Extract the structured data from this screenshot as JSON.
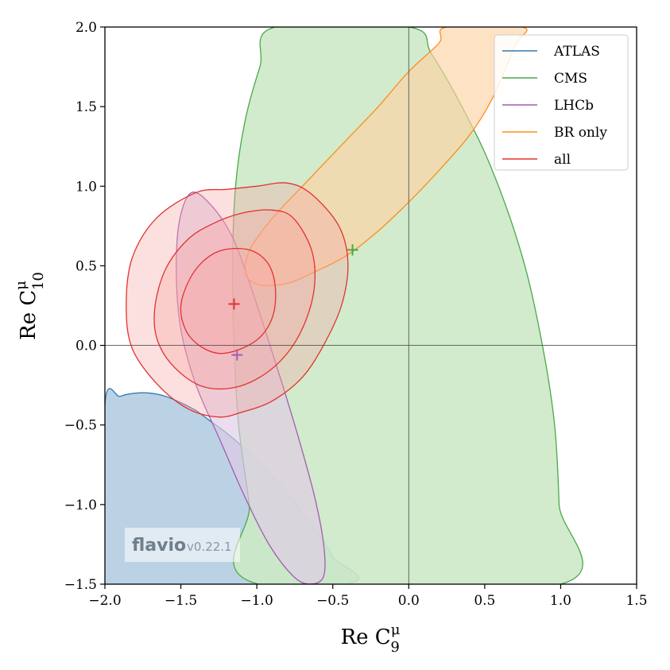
{
  "chart_data": {
    "type": "contour",
    "xlabel_text": "Re C",
    "xlabel_sub": "9",
    "xlabel_sup": "μ",
    "ylabel_text": "Re C",
    "ylabel_sub": "10",
    "ylabel_sup": "μ",
    "xlim": [
      -2.0,
      1.5
    ],
    "ylim": [
      -1.5,
      2.0
    ],
    "xticks": [
      "−2.0",
      "−1.5",
      "−1.0",
      "−0.5",
      "0.0",
      "0.5",
      "1.0",
      "1.5"
    ],
    "xtick_values": [
      -2.0,
      -1.5,
      -1.0,
      -0.5,
      0.0,
      0.5,
      1.0,
      1.5
    ],
    "yticks": [
      "−1.5",
      "−1.0",
      "−0.5",
      "0.0",
      "0.5",
      "1.0",
      "1.5",
      "2.0"
    ],
    "ytick_values": [
      -1.5,
      -1.0,
      -0.5,
      0.0,
      0.5,
      1.0,
      1.5,
      2.0
    ],
    "grid": false,
    "reference_lines": {
      "x": 0.0,
      "y": 0.0
    },
    "legend_position": "top-right",
    "series": [
      {
        "name": "ATLAS",
        "color": "#3778b4",
        "fill": "#b4cde2",
        "contours": [
          [
            [
              -2.0,
              -0.37
            ],
            [
              -1.9,
              -0.32
            ],
            [
              -1.8,
              -0.3
            ],
            [
              -1.7,
              -0.3
            ],
            [
              -1.6,
              -0.32
            ],
            [
              -1.5,
              -0.36
            ],
            [
              -1.4,
              -0.41
            ],
            [
              -1.3,
              -0.48
            ],
            [
              -1.2,
              -0.55
            ],
            [
              -1.1,
              -0.63
            ],
            [
              -1.0,
              -0.72
            ],
            [
              -0.9,
              -0.82
            ],
            [
              -0.8,
              -0.93
            ],
            [
              -0.7,
              -1.05
            ],
            [
              -0.6,
              -1.18
            ],
            [
              -0.5,
              -1.33
            ],
            [
              -0.43,
              -1.5
            ],
            [
              -2.0,
              -1.5
            ]
          ]
        ]
      },
      {
        "name": "CMS",
        "color": "#4aa84a",
        "fill": "#cce9c6",
        "contours": [
          [
            [
              -0.99,
              -1.5
            ],
            [
              -1.05,
              -1.0
            ],
            [
              -1.12,
              -0.5
            ],
            [
              -1.15,
              0.0
            ],
            [
              -1.16,
              0.5
            ],
            [
              -1.14,
              1.0
            ],
            [
              -1.08,
              1.4
            ],
            [
              -0.98,
              1.75
            ],
            [
              -0.88,
              2.0
            ],
            [
              0.0,
              2.0
            ],
            [
              0.15,
              1.83
            ],
            [
              0.35,
              1.5
            ],
            [
              0.55,
              1.1
            ],
            [
              0.75,
              0.55
            ],
            [
              0.88,
              0.0
            ],
            [
              0.96,
              -0.5
            ],
            [
              0.99,
              -1.0
            ],
            [
              1.0,
              -1.5
            ]
          ]
        ],
        "best_fit": [
          -0.37,
          0.6
        ]
      },
      {
        "name": "LHCb",
        "color": "#a55cb0",
        "fill": "#dfcbe5",
        "contours": [
          [
            [
              -1.43,
              0.96
            ],
            [
              -1.3,
              0.88
            ],
            [
              -1.16,
              0.68
            ],
            [
              -1.05,
              0.4
            ],
            [
              -0.94,
              0.08
            ],
            [
              -0.83,
              -0.25
            ],
            [
              -0.72,
              -0.6
            ],
            [
              -0.62,
              -0.95
            ],
            [
              -0.56,
              -1.25
            ],
            [
              -0.56,
              -1.45
            ],
            [
              -0.65,
              -1.5
            ],
            [
              -0.76,
              -1.45
            ],
            [
              -0.92,
              -1.25
            ],
            [
              -1.08,
              -0.95
            ],
            [
              -1.24,
              -0.6
            ],
            [
              -1.4,
              -0.25
            ],
            [
              -1.5,
              0.1
            ],
            [
              -1.53,
              0.45
            ],
            [
              -1.51,
              0.78
            ]
          ]
        ],
        "best_fit": [
          -1.13,
          -0.06
        ]
      },
      {
        "name": "BR only",
        "color": "#ff8c1a",
        "fill": "#fdd2a4",
        "contours": [
          [
            [
              -1.07,
              0.44
            ],
            [
              -1.06,
              0.57
            ],
            [
              -0.98,
              0.7
            ],
            [
              -0.85,
              0.85
            ],
            [
              -0.7,
              1.0
            ],
            [
              -0.55,
              1.15
            ],
            [
              -0.4,
              1.3
            ],
            [
              -0.2,
              1.5
            ],
            [
              0.0,
              1.72
            ],
            [
              0.2,
              1.9
            ],
            [
              0.25,
              2.0
            ],
            [
              0.75,
              2.0
            ],
            [
              0.7,
              1.88
            ],
            [
              0.55,
              1.55
            ],
            [
              0.4,
              1.32
            ],
            [
              0.2,
              1.1
            ],
            [
              0.0,
              0.9
            ],
            [
              -0.2,
              0.72
            ],
            [
              -0.4,
              0.57
            ],
            [
              -0.6,
              0.47
            ],
            [
              -0.8,
              0.39
            ],
            [
              -0.98,
              0.38
            ]
          ]
        ]
      },
      {
        "name": "all",
        "color": "#e23232",
        "fill": "#f6a6a2",
        "contours": [
          [
            [
              -1.4,
              0.96
            ],
            [
              -1.2,
              0.98
            ],
            [
              -1.0,
              1.0
            ],
            [
              -0.8,
              1.02
            ],
            [
              -0.64,
              0.95
            ],
            [
              -0.46,
              0.75
            ],
            [
              -0.4,
              0.52
            ],
            [
              -0.44,
              0.26
            ],
            [
              -0.55,
              0.02
            ],
            [
              -0.7,
              -0.2
            ],
            [
              -0.9,
              -0.35
            ],
            [
              -1.1,
              -0.42
            ],
            [
              -1.25,
              -0.45
            ],
            [
              -1.45,
              -0.4
            ],
            [
              -1.65,
              -0.25
            ],
            [
              -1.82,
              -0.02
            ],
            [
              -1.86,
              0.25
            ],
            [
              -1.82,
              0.55
            ],
            [
              -1.66,
              0.8
            ]
          ],
          [
            [
              -1.3,
              0.76
            ],
            [
              -1.1,
              0.83
            ],
            [
              -0.9,
              0.85
            ],
            [
              -0.76,
              0.8
            ],
            [
              -0.64,
              0.6
            ],
            [
              -0.62,
              0.38
            ],
            [
              -0.68,
              0.15
            ],
            [
              -0.8,
              -0.05
            ],
            [
              -0.98,
              -0.2
            ],
            [
              -1.18,
              -0.27
            ],
            [
              -1.38,
              -0.25
            ],
            [
              -1.56,
              -0.12
            ],
            [
              -1.66,
              0.05
            ],
            [
              -1.67,
              0.25
            ],
            [
              -1.6,
              0.48
            ],
            [
              -1.46,
              0.66
            ]
          ],
          [
            [
              -1.22,
              0.6
            ],
            [
              -1.05,
              0.6
            ],
            [
              -0.93,
              0.52
            ],
            [
              -0.88,
              0.38
            ],
            [
              -0.89,
              0.2
            ],
            [
              -0.97,
              0.06
            ],
            [
              -1.1,
              -0.02
            ],
            [
              -1.25,
              -0.05
            ],
            [
              -1.38,
              0.0
            ],
            [
              -1.47,
              0.1
            ],
            [
              -1.5,
              0.25
            ],
            [
              -1.44,
              0.42
            ],
            [
              -1.34,
              0.54
            ]
          ]
        ],
        "best_fit": [
          -1.15,
          0.26
        ]
      }
    ]
  },
  "watermark": {
    "name": "flavio",
    "version": "v0.22.1"
  }
}
